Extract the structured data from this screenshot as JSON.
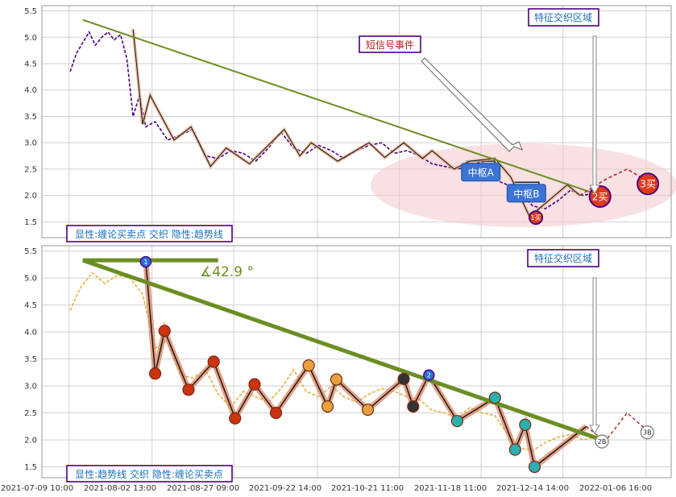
{
  "chart_data": [
    {
      "type": "line",
      "panel": "top",
      "ylim": [
        1.2,
        5.6
      ],
      "yticks": [
        "1.5",
        "2.0",
        "2.5",
        "3.0",
        "3.5",
        "4.0",
        "4.5",
        "5.0",
        "5.5"
      ],
      "legend_label": "显性:缠论买卖点 交织 隐性:趋势线",
      "feature_zone_label": "特征交织区域",
      "event_label": "短信号事件",
      "zhongshu": [
        {
          "label": "中枢A",
          "x0": 0.675,
          "x1": 0.72,
          "y0": 2.35,
          "y1": 2.65
        },
        {
          "label": "中枢B",
          "x0": 0.75,
          "x1": 0.79,
          "y0": 1.95,
          "y1": 2.25
        }
      ],
      "trendline": {
        "x": [
          0.065,
          0.9
        ],
        "y": [
          5.33,
          1.95
        ]
      },
      "price": {
        "x": [
          0.045,
          0.055,
          0.065,
          0.075,
          0.085,
          0.095,
          0.105,
          0.115,
          0.125,
          0.135,
          0.145,
          0.155,
          0.165,
          0.18,
          0.2,
          0.22,
          0.24,
          0.26,
          0.28,
          0.3,
          0.32,
          0.34,
          0.36,
          0.38,
          0.4,
          0.42,
          0.44,
          0.46,
          0.48,
          0.5,
          0.52,
          0.54,
          0.56,
          0.58,
          0.6,
          0.62,
          0.64,
          0.66,
          0.68,
          0.7,
          0.72,
          0.74,
          0.76,
          0.78,
          0.8,
          0.82,
          0.84,
          0.86,
          0.88
        ],
        "y": [
          4.35,
          4.7,
          4.9,
          5.1,
          4.85,
          5.0,
          5.1,
          4.95,
          5.05,
          4.6,
          3.5,
          3.9,
          3.3,
          3.4,
          3.05,
          3.15,
          3.25,
          2.75,
          2.7,
          2.85,
          2.8,
          2.65,
          2.9,
          3.2,
          2.9,
          2.8,
          2.95,
          2.85,
          2.7,
          2.85,
          2.95,
          3.0,
          2.8,
          2.85,
          2.75,
          2.6,
          2.55,
          2.5,
          2.55,
          2.65,
          2.3,
          2.2,
          2.05,
          1.8,
          1.75,
          1.9,
          2.1,
          2.0,
          2.05
        ]
      },
      "zigzag": {
        "x": [
          0.145,
          0.16,
          0.172,
          0.21,
          0.237,
          0.268,
          0.293,
          0.33,
          0.385,
          0.41,
          0.428,
          0.47,
          0.52,
          0.545,
          0.575,
          0.605,
          0.62,
          0.655,
          0.68,
          0.72,
          0.745,
          0.775,
          0.8,
          0.835,
          0.855
        ],
        "y": [
          5.15,
          3.35,
          3.9,
          3.05,
          3.3,
          2.55,
          2.9,
          2.6,
          3.25,
          2.75,
          3.0,
          2.65,
          3.0,
          2.72,
          3.0,
          2.7,
          2.85,
          2.5,
          2.65,
          2.7,
          2.35,
          1.6,
          1.85,
          2.2,
          2.0
        ]
      },
      "markers": [
        {
          "label": "1买",
          "x": 0.785,
          "y": 1.58
        },
        {
          "label": "2买",
          "x": 0.887,
          "y": 1.98
        },
        {
          "label": "3买",
          "x": 0.963,
          "y": 2.22
        }
      ],
      "projection": {
        "x": [
          0.855,
          0.895,
          0.93,
          0.965
        ],
        "y": [
          2.0,
          2.3,
          2.5,
          2.25
        ]
      }
    },
    {
      "type": "line",
      "panel": "bottom",
      "ylim": [
        1.3,
        5.6
      ],
      "yticks": [
        "1.5",
        "2.0",
        "2.5",
        "3.0",
        "3.5",
        "4.0",
        "4.5",
        "5.0",
        "5.5"
      ],
      "xticks": [
        "2021-07-09 10:00",
        "2021-08-02 13:00",
        "2021-08-27 09:00",
        "2021-09-22 14:00",
        "2021-10-21 11:00",
        "2021-11-18 11:00",
        "2021-12-14 14:00",
        "2022-01-06 16:00"
      ],
      "legend_label": "显性:趋势线 交织 隐性:缠论买卖点",
      "feature_zone_label": "特征交织区域",
      "angle_label": "∡42.9 °",
      "trendline": {
        "x": [
          0.065,
          0.9
        ],
        "y": [
          5.33,
          1.96
        ]
      },
      "markers": [
        {
          "label": "1",
          "x": 0.165,
          "y": 5.3
        },
        {
          "label": "2",
          "x": 0.615,
          "y": 3.2
        },
        {
          "label": "2B",
          "x": 0.89,
          "y": 1.97
        },
        {
          "label": "3B",
          "x": 0.962,
          "y": 2.14
        }
      ],
      "note_markers": [
        {
          "x": 0.18,
          "y": 3.23
        },
        {
          "x": 0.195,
          "y": 4.02
        },
        {
          "x": 0.233,
          "y": 2.93
        },
        {
          "x": 0.273,
          "y": 3.45
        },
        {
          "x": 0.307,
          "y": 2.4
        },
        {
          "x": 0.338,
          "y": 3.03
        },
        {
          "x": 0.372,
          "y": 2.5
        },
        {
          "x": 0.424,
          "y": 3.38
        },
        {
          "x": 0.454,
          "y": 2.62
        },
        {
          "x": 0.468,
          "y": 3.12
        },
        {
          "x": 0.518,
          "y": 2.56
        },
        {
          "x": 0.575,
          "y": 3.13
        },
        {
          "x": 0.59,
          "y": 2.62
        },
        {
          "x": 0.66,
          "y": 2.35
        },
        {
          "x": 0.72,
          "y": 2.78
        },
        {
          "x": 0.752,
          "y": 1.82
        },
        {
          "x": 0.768,
          "y": 2.28
        },
        {
          "x": 0.783,
          "y": 1.5
        }
      ],
      "zigzag": {
        "x": [
          0.165,
          0.18,
          0.195,
          0.233,
          0.273,
          0.307,
          0.338,
          0.372,
          0.424,
          0.454,
          0.468,
          0.518,
          0.575,
          0.59,
          0.615,
          0.66,
          0.72,
          0.752,
          0.768,
          0.783,
          0.865
        ],
        "y": [
          5.3,
          3.23,
          4.02,
          2.93,
          3.45,
          2.4,
          3.03,
          2.5,
          3.38,
          2.62,
          3.12,
          2.56,
          3.13,
          2.62,
          3.2,
          2.35,
          2.78,
          1.82,
          2.28,
          1.5,
          2.25
        ]
      },
      "price": {
        "x": [
          0.045,
          0.06,
          0.08,
          0.1,
          0.12,
          0.14,
          0.16,
          0.18,
          0.2,
          0.22,
          0.24,
          0.26,
          0.28,
          0.3,
          0.32,
          0.34,
          0.36,
          0.38,
          0.4,
          0.42,
          0.44,
          0.46,
          0.48,
          0.5,
          0.52,
          0.54,
          0.56,
          0.58,
          0.6,
          0.62,
          0.64,
          0.66,
          0.68,
          0.7,
          0.72,
          0.74,
          0.76,
          0.78,
          0.8,
          0.82,
          0.84,
          0.86,
          0.88
        ],
        "y": [
          4.4,
          4.8,
          5.1,
          4.9,
          5.05,
          5.0,
          4.7,
          3.7,
          3.85,
          3.2,
          3.15,
          3.3,
          2.85,
          2.6,
          2.9,
          2.8,
          2.7,
          2.95,
          3.3,
          2.9,
          2.8,
          3.0,
          2.8,
          2.7,
          2.85,
          2.95,
          2.9,
          2.8,
          2.75,
          2.55,
          2.5,
          2.4,
          2.6,
          2.5,
          2.45,
          2.1,
          1.85,
          1.8,
          1.95,
          2.05,
          2.1,
          2.0,
          2.05
        ]
      },
      "projection": {
        "x": [
          0.865,
          0.895,
          0.93,
          0.965
        ],
        "y": [
          2.25,
          1.97,
          2.5,
          2.14
        ]
      }
    }
  ]
}
